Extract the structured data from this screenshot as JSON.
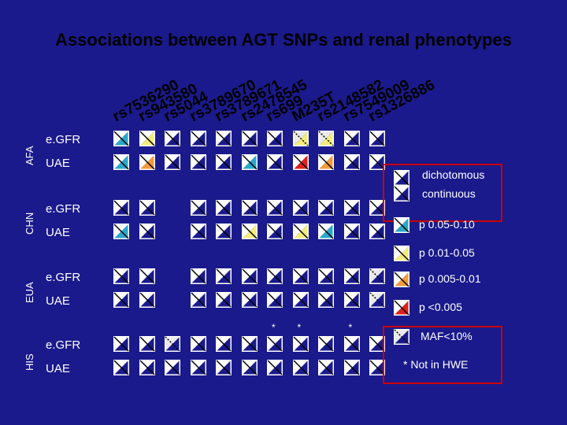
{
  "title": "Associations between AGT SNPs and renal phenotypes",
  "snps": [
    "rs7536290",
    "rs943580",
    "rs5044",
    "rs3789670",
    "rs3789671",
    "rs2478545",
    "rs699",
    "M235T",
    "rs2148582",
    "rs7549009",
    "rs1326886"
  ],
  "groups": [
    {
      "name": "AFA",
      "rows": [
        {
          "label": "e.GFR",
          "cells": [
            "c-blue",
            "c-yellow",
            "c",
            "c",
            "c",
            "c",
            "c",
            "d-yellow",
            "d-yellow",
            "c",
            "c"
          ]
        },
        {
          "label": "UAE",
          "cells": [
            "c-blue",
            "c-orange",
            "c",
            "c",
            "c",
            "c-blue",
            "c",
            "c-red",
            "c-orange",
            "c",
            "c"
          ]
        }
      ]
    },
    {
      "name": "CHN",
      "rows": [
        {
          "label": "e.GFR",
          "cells": [
            "c",
            "c",
            "",
            "c",
            "c",
            "c",
            "c",
            "c",
            "c",
            "c",
            "c"
          ]
        },
        {
          "label": "UAE",
          "cells": [
            "c-blue",
            "c",
            "",
            "c",
            "c",
            "c-yellow",
            "c",
            "c-yellow",
            "c-blue",
            "c",
            "c"
          ]
        }
      ]
    },
    {
      "name": "EUA",
      "rows": [
        {
          "label": "e.GFR",
          "cells": [
            "c",
            "c",
            "",
            "c",
            "c",
            "c",
            "c",
            "c",
            "c",
            "c",
            "d"
          ]
        },
        {
          "label": "UAE",
          "cells": [
            "c",
            "c",
            "",
            "c",
            "c",
            "c",
            "c",
            "c",
            "c",
            "c",
            "d"
          ]
        }
      ]
    },
    {
      "name": "HIS",
      "rows": [
        {
          "label": "e.GFR",
          "cells": [
            "c",
            "c",
            "d",
            "c",
            "c",
            "c",
            "c",
            "c",
            "c",
            "c",
            "c"
          ]
        },
        {
          "label": "UAE",
          "cells": [
            "c",
            "c",
            "c",
            "c",
            "c",
            "c",
            "c",
            "c",
            "c",
            "c",
            "c"
          ]
        }
      ]
    }
  ],
  "hwe_star_cols": [
    6,
    7,
    9
  ],
  "star_symbol": "*",
  "legend": {
    "dichotomous": "dichotomous",
    "continuous": "continuous",
    "p1": "p 0.05-0.10",
    "p2": "p 0.01-0.05",
    "p3": "p 0.005-0.01",
    "p4": "p <0.005",
    "maf": "MAF<10%",
    "hwe": "*  Not in HWE"
  },
  "colors": {
    "background": "#1a1a8c",
    "blue": "#2aa7c9",
    "yellow": "#f3ec7a",
    "orange": "#f49a3b",
    "red": "#e0201b",
    "cell_light": "#eaeaea",
    "cell_line": "#000000",
    "highlight_border": "#cc0000"
  }
}
